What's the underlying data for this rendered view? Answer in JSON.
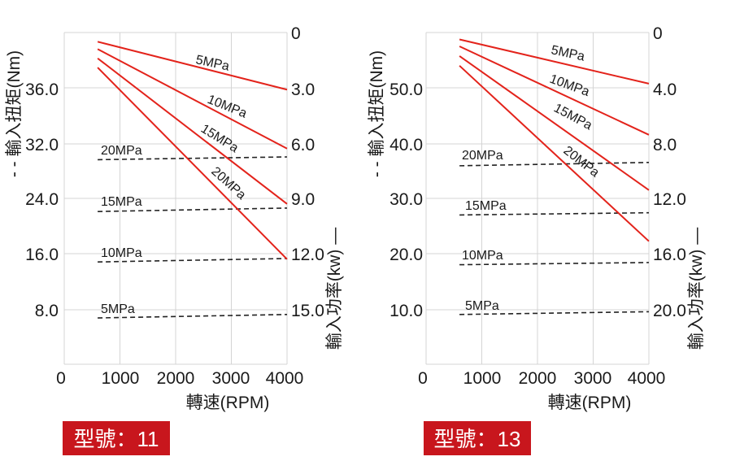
{
  "chart_data": [
    {
      "type": "line",
      "model_badge": "型號：11",
      "xlabel": "轉速(RPM)",
      "ylabel_left": "- - 輸入扭矩(Nm)",
      "ylabel_right": "輸入功率(kw) —",
      "x_ticks": [
        "0",
        "1000",
        "2000",
        "3000",
        "4000"
      ],
      "left_ticks": [
        "8.0",
        "16.0",
        "24.0",
        "32.0",
        "36.0"
      ],
      "right_ticks": [
        "0",
        "3.0",
        "6.0",
        "9.0",
        "12.0",
        "15.0"
      ],
      "xlim": [
        0,
        4000
      ],
      "grid": true,
      "legend": "none",
      "torque_series": [
        {
          "name": "20MPa",
          "x": [
            600,
            4000
          ],
          "y": [
            29.6,
            30.0
          ]
        },
        {
          "name": "15MPa",
          "x": [
            600,
            4000
          ],
          "y": [
            22.1,
            22.6
          ]
        },
        {
          "name": "10MPa",
          "x": [
            600,
            4000
          ],
          "y": [
            14.8,
            15.3
          ]
        },
        {
          "name": "5MPa",
          "x": [
            600,
            4000
          ],
          "y": [
            6.7,
            7.2
          ]
        }
      ],
      "power_series": [
        {
          "name": "5MPa",
          "x": [
            600,
            4000
          ],
          "y": [
            0.5,
            3.1
          ]
        },
        {
          "name": "10MPa",
          "x": [
            600,
            4000
          ],
          "y": [
            0.9,
            6.3
          ]
        },
        {
          "name": "15MPa",
          "x": [
            600,
            4000
          ],
          "y": [
            1.4,
            9.3
          ]
        },
        {
          "name": "20MPa",
          "x": [
            600,
            4000
          ],
          "y": [
            1.9,
            12.3
          ]
        }
      ]
    },
    {
      "type": "line",
      "model_badge": "型號：13",
      "xlabel": "轉速(RPM)",
      "ylabel_left": "- - 輸入扭矩(Nm)",
      "ylabel_right": "輸入功率(kw) —",
      "x_ticks": [
        "0",
        "1000",
        "2000",
        "3000",
        "4000"
      ],
      "left_ticks": [
        "10.0",
        "20.0",
        "30.0",
        "40.0",
        "50.0"
      ],
      "right_ticks": [
        "0",
        "4.0",
        "8.0",
        "12.0",
        "16.0",
        "20.0"
      ],
      "xlim": [
        0,
        4000
      ],
      "grid": true,
      "legend": "none",
      "torque_series": [
        {
          "name": "20MPa",
          "x": [
            600,
            4000
          ],
          "y": [
            35.9,
            36.5
          ]
        },
        {
          "name": "15MPa",
          "x": [
            600,
            4000
          ],
          "y": [
            27.0,
            27.4
          ]
        },
        {
          "name": "10MPa",
          "x": [
            600,
            4000
          ],
          "y": [
            18.0,
            18.4
          ]
        },
        {
          "name": "5MPa",
          "x": [
            600,
            4000
          ],
          "y": [
            9.0,
            9.5
          ]
        }
      ],
      "power_series": [
        {
          "name": "5MPa",
          "x": [
            600,
            4000
          ],
          "y": [
            0.5,
            3.7
          ]
        },
        {
          "name": "10MPa",
          "x": [
            600,
            4000
          ],
          "y": [
            1.0,
            7.4
          ]
        },
        {
          "name": "15MPa",
          "x": [
            600,
            4000
          ],
          "y": [
            1.7,
            11.4
          ]
        },
        {
          "name": "20MPa",
          "x": [
            600,
            4000
          ],
          "y": [
            2.4,
            15.1
          ]
        }
      ]
    }
  ]
}
